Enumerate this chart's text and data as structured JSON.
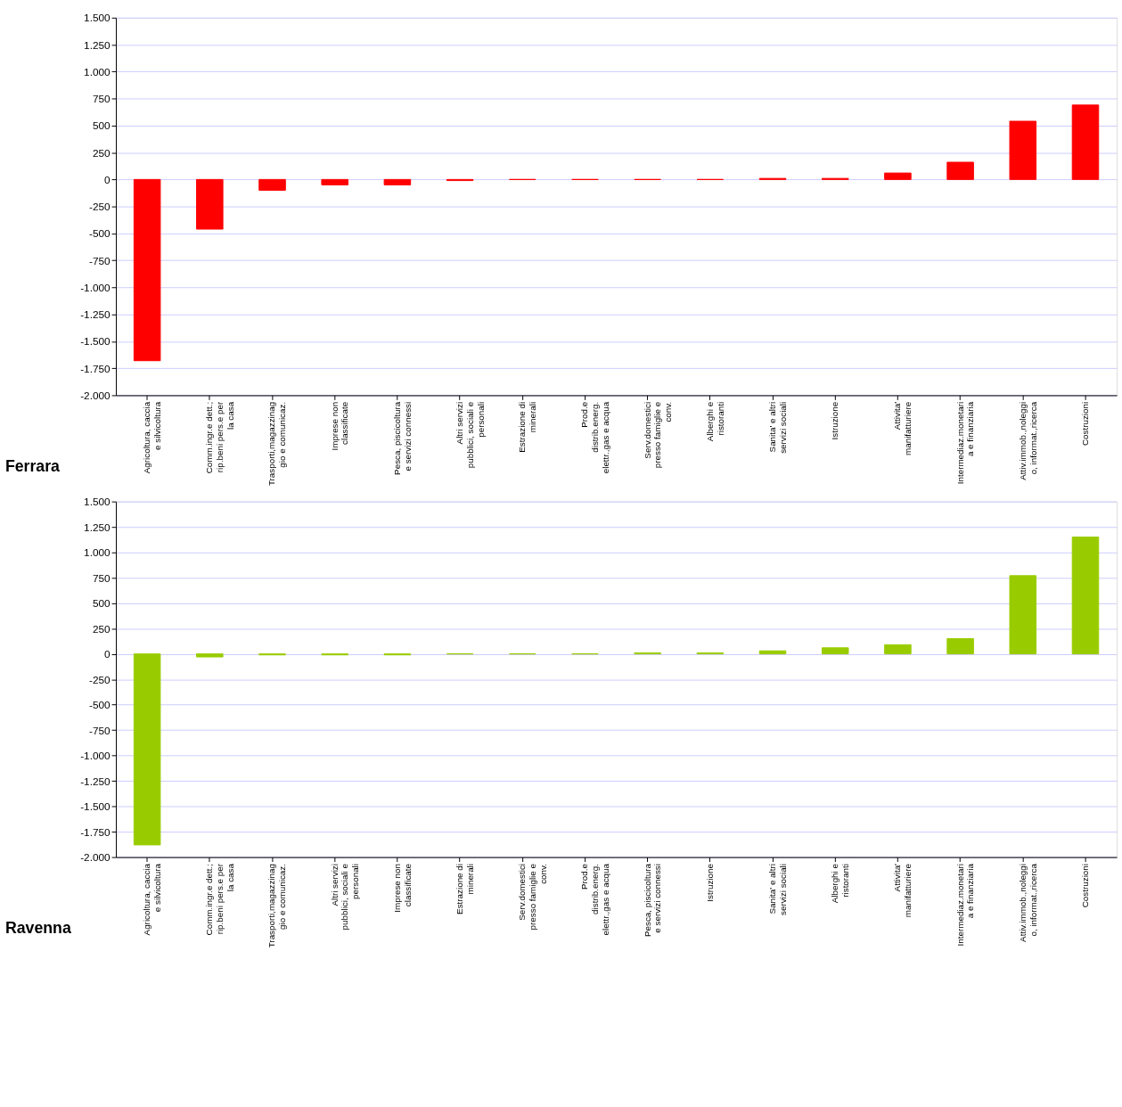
{
  "chart_data": [
    {
      "type": "bar",
      "title": "Ferrara",
      "grid": "y",
      "categories": [
        "Agricoltura, caccia e silvicoltura",
        "Comm.ingr.e dett.; rip.beni pers.e per la casa",
        "Trasporti,magazzinaggio e comunicaz.",
        "Imprese non classificate",
        "Pesca, piscicoltura e servizi connessi",
        "Altri servizi pubblici, sociali e personali",
        "Estrazione di minerali",
        "Prod.e distrib.energ. elettr.,gas e acqua",
        "Serv.domestici presso famiglie e conv.",
        "Alberghi e ristoranti",
        "Sanita' e altri servizi sociali",
        "Istruzione",
        "Attivita' manifatturiere",
        "Intermediaz.monetaria e finanziaria",
        "Attiv.immob.,noleggio, informat.,ricerca",
        "Costruzioni"
      ],
      "series": [
        {
          "color": "#ff0000",
          "values": [
            -1680,
            -460,
            -100,
            -50,
            -50,
            -10,
            0,
            0,
            0,
            0,
            10,
            10,
            60,
            160,
            540,
            690
          ]
        }
      ],
      "ylim": [
        -2000,
        1500
      ],
      "yticks": [
        {
          "value": -2000,
          "label": "-2.000"
        },
        {
          "value": -1750,
          "label": "-1.750"
        },
        {
          "value": -1500,
          "label": "-1.500"
        },
        {
          "value": -1250,
          "label": "-1.250"
        },
        {
          "value": -1000,
          "label": "-1.000"
        },
        -750,
        -500,
        -250,
        0,
        250,
        500,
        750,
        {
          "value": 1000,
          "label": "1.000"
        },
        {
          "value": 1250,
          "label": "1.250"
        },
        {
          "value": 1500,
          "label": "1.500"
        }
      ]
    },
    {
      "type": "bar",
      "title": "Ravenna",
      "grid": "y",
      "categories": [
        "Agricoltura, caccia e silvicoltura",
        "Comm.ingr.e dett.; rip.beni pers.e per la casa",
        "Trasporti,magazzinaggio e comunicaz.",
        "Altri servizi pubblici, sociali e personali",
        "Imprese non classificate",
        "Estrazione di minerali",
        "Serv.domestici presso famiglie e conv.",
        "Prod.e distrib.energ. elettr.,gas e acqua",
        "Pesca, piscicoltura e servizi connessi",
        "Istruzione",
        "Sanita' e altri servizi sociali",
        "Alberghi e ristoranti",
        "Attivita' manifatturiere",
        "Intermediaz.monetaria e finanziaria",
        "Attiv.immob.,noleggio, informat.,ricerca",
        "Costruzioni"
      ],
      "series": [
        {
          "color": "#99cc00",
          "values": [
            -1880,
            -30,
            -10,
            -10,
            -10,
            0,
            0,
            0,
            10,
            10,
            30,
            60,
            90,
            150,
            770,
            1150
          ]
        }
      ],
      "ylim": [
        -2000,
        1500
      ],
      "yticks": [
        {
          "value": -2000,
          "label": "-2.000"
        },
        {
          "value": -1750,
          "label": "-1.750"
        },
        {
          "value": -1500,
          "label": "-1.500"
        },
        {
          "value": -1250,
          "label": "-1.250"
        },
        {
          "value": -1000,
          "label": "-1.000"
        },
        -750,
        -500,
        -250,
        0,
        250,
        500,
        750,
        {
          "value": 1000,
          "label": "1.000"
        },
        {
          "value": 1250,
          "label": "1.250"
        },
        {
          "value": 1500,
          "label": "1.500"
        }
      ]
    }
  ]
}
